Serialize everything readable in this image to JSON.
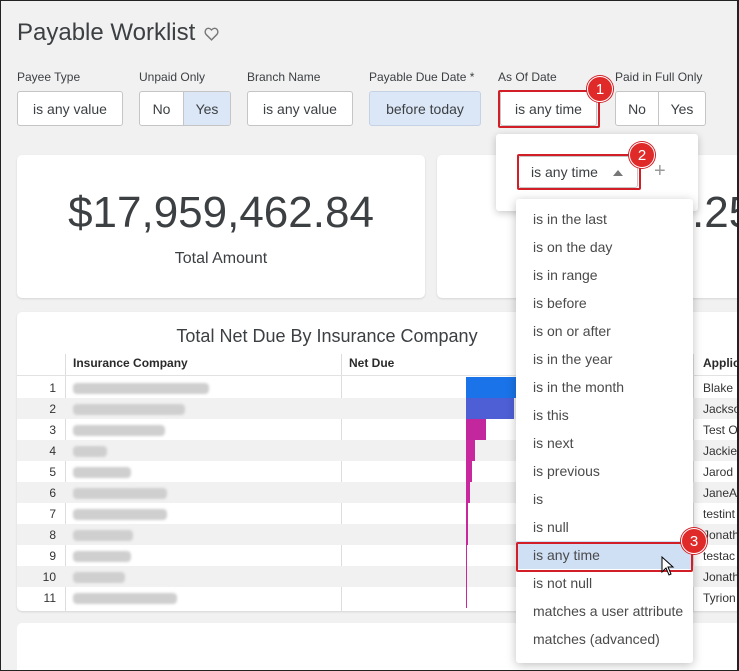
{
  "page": {
    "title": "Payable Worklist"
  },
  "filters": {
    "payee_type": {
      "label": "Payee Type",
      "value": "is any value"
    },
    "unpaid_only": {
      "label": "Unpaid Only",
      "no": "No",
      "yes": "Yes",
      "selected": "Yes"
    },
    "branch_name": {
      "label": "Branch Name",
      "value": "is any value"
    },
    "payable_due_date": {
      "label": "Payable Due Date *",
      "value": "before today"
    },
    "as_of_date": {
      "label": "As Of Date",
      "value": "is any time"
    },
    "paid_in_full_only": {
      "label": "Paid in Full Only",
      "no": "No",
      "yes": "Yes"
    }
  },
  "tiles": {
    "total_amount": {
      "value": "$17,959,462.84",
      "caption": "Total Amount"
    },
    "second_partial_value": ".25"
  },
  "table": {
    "title": "Total Net Due By Insurance Company",
    "columns": [
      "Insurance Company",
      "Net Due",
      "Applic"
    ],
    "rows": [
      {
        "n": "1",
        "applicant": "Blake S",
        "bar_fraction": 1.0,
        "bar_color": "#1a73e8"
      },
      {
        "n": "2",
        "applicant": "Jackso",
        "bar_fraction": 0.92,
        "bar_color": "#4e5fd6"
      },
      {
        "n": "3",
        "applicant": "Test O",
        "bar_fraction": 0.38,
        "bar_color": "#c2279e"
      },
      {
        "n": "4",
        "applicant": "Jackie",
        "bar_fraction": 0.17,
        "bar_color": "#c8279d"
      },
      {
        "n": "5",
        "applicant": "Jarod",
        "bar_fraction": 0.11,
        "bar_color": "#c8279d"
      },
      {
        "n": "6",
        "applicant": "JaneA",
        "bar_fraction": 0.08,
        "bar_color": "#c8279d"
      },
      {
        "n": "7",
        "applicant": "testint",
        "bar_fraction": 0.03,
        "bar_color": "#c8279d"
      },
      {
        "n": "8",
        "applicant": "Jonath",
        "bar_fraction": 0.03,
        "bar_color": "#c8279d"
      },
      {
        "n": "9",
        "applicant": "testac",
        "bar_fraction": 0.02,
        "bar_color": "#c8279d"
      },
      {
        "n": "10",
        "applicant": "Jonath",
        "bar_fraction": 0.02,
        "bar_color": "#c8279d"
      },
      {
        "n": "11",
        "applicant": "Tyrion",
        "bar_fraction": 0.02,
        "bar_color": "#c8279d"
      }
    ]
  },
  "popup": {
    "select_value": "is any time",
    "add_label": "+"
  },
  "dropdown": {
    "options": [
      "is in the last",
      "is on the day",
      "is in range",
      "is before",
      "is on or after",
      "is in the year",
      "is in the month",
      "is this",
      "is next",
      "is previous",
      "is",
      "is null",
      "is any time",
      "is not null",
      "matches a user attribute",
      "matches (advanced)"
    ],
    "selected": "is any time"
  },
  "annotations": [
    "1",
    "2",
    "3"
  ],
  "colors": {
    "annotation_red": "#d21f27",
    "selected_bg": "#dbe7f7"
  }
}
